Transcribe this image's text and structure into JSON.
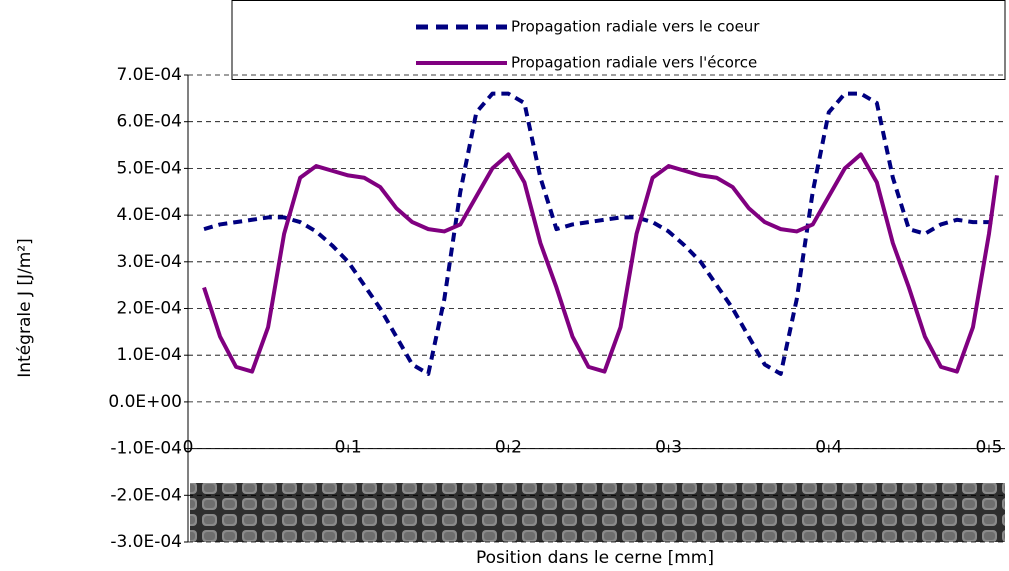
{
  "chart_data": {
    "type": "line",
    "y_label": "Intégrale J [J/m²]",
    "x_label": "Position dans le cerne [mm]",
    "x": [
      0.01,
      0.02,
      0.03,
      0.04,
      0.05,
      0.06,
      0.07,
      0.08,
      0.09,
      0.1,
      0.11,
      0.12,
      0.13,
      0.14,
      0.15,
      0.16,
      0.17,
      0.18,
      0.19,
      0.2,
      0.21,
      0.22,
      0.23,
      0.24,
      0.25,
      0.26,
      0.27,
      0.28,
      0.29,
      0.3,
      0.31,
      0.32,
      0.33,
      0.34,
      0.35,
      0.36,
      0.37,
      0.38,
      0.39,
      0.4,
      0.41,
      0.42,
      0.43,
      0.44,
      0.45,
      0.46,
      0.47,
      0.48,
      0.49,
      0.5,
      0.505
    ],
    "series": [
      {
        "name": "Propagation radiale vers le coeur",
        "color": "#000080",
        "dash": true,
        "values": [
          0.00037,
          0.00038,
          0.000385,
          0.00039,
          0.000395,
          0.000395,
          0.000385,
          0.000365,
          0.000335,
          0.0003,
          0.00025,
          0.0002,
          0.00014,
          8e-05,
          6e-05,
          0.00022,
          0.00045,
          0.00062,
          0.00066,
          0.00066,
          0.00064,
          0.00048,
          0.00037,
          0.00038,
          0.000385,
          0.00039,
          0.000395,
          0.000395,
          0.000385,
          0.000365,
          0.000335,
          0.0003,
          0.00025,
          0.0002,
          0.00014,
          8e-05,
          6e-05,
          0.00022,
          0.00045,
          0.00062,
          0.00066,
          0.00066,
          0.00064,
          0.00048,
          0.00037,
          0.00036,
          0.00038,
          0.00039,
          0.000385,
          0.000385,
          0.000385
        ]
      },
      {
        "name": "Propagation radiale vers l'écorce",
        "color": "#800080",
        "dash": false,
        "values": [
          0.000245,
          0.00014,
          7.5e-05,
          6.5e-05,
          0.00016,
          0.00036,
          0.00048,
          0.000505,
          0.000495,
          0.000485,
          0.00048,
          0.00046,
          0.000415,
          0.000385,
          0.00037,
          0.000365,
          0.00038,
          0.00044,
          0.0005,
          0.00053,
          0.00047,
          0.00034,
          0.000245,
          0.00014,
          7.5e-05,
          6.5e-05,
          0.00016,
          0.00036,
          0.00048,
          0.000505,
          0.000495,
          0.000485,
          0.00048,
          0.00046,
          0.000415,
          0.000385,
          0.00037,
          0.000365,
          0.00038,
          0.00044,
          0.0005,
          0.00053,
          0.00047,
          0.00034,
          0.000245,
          0.00014,
          7.5e-05,
          6.5e-05,
          0.00016,
          0.00036,
          0.000485
        ]
      }
    ],
    "xlim": [
      0,
      0.51
    ],
    "xticks": [
      0,
      0.1,
      0.2,
      0.3,
      0.4,
      0.5
    ],
    "ylim": [
      -0.0003,
      0.0007
    ],
    "yticks": [
      {
        "value": 0.0007,
        "label": "7.0E-04"
      },
      {
        "value": 0.0006,
        "label": "6.0E-04"
      },
      {
        "value": 0.0005,
        "label": "5.0E-04"
      },
      {
        "value": 0.0004,
        "label": "4.0E-04"
      },
      {
        "value": 0.0003,
        "label": "3.0E-04"
      },
      {
        "value": 0.0002,
        "label": "2.0E-04"
      },
      {
        "value": 0.0001,
        "label": "1.0E-04"
      },
      {
        "value": 0,
        "label": "0.0E+00"
      },
      {
        "value": -0.0001,
        "label": "-1.0E-04"
      },
      {
        "value": -0.0002,
        "label": "-2.0E-04"
      },
      {
        "value": -0.0003,
        "label": "-3.0E-04"
      }
    ],
    "x_axis_at": -0.0001,
    "grid": true
  }
}
